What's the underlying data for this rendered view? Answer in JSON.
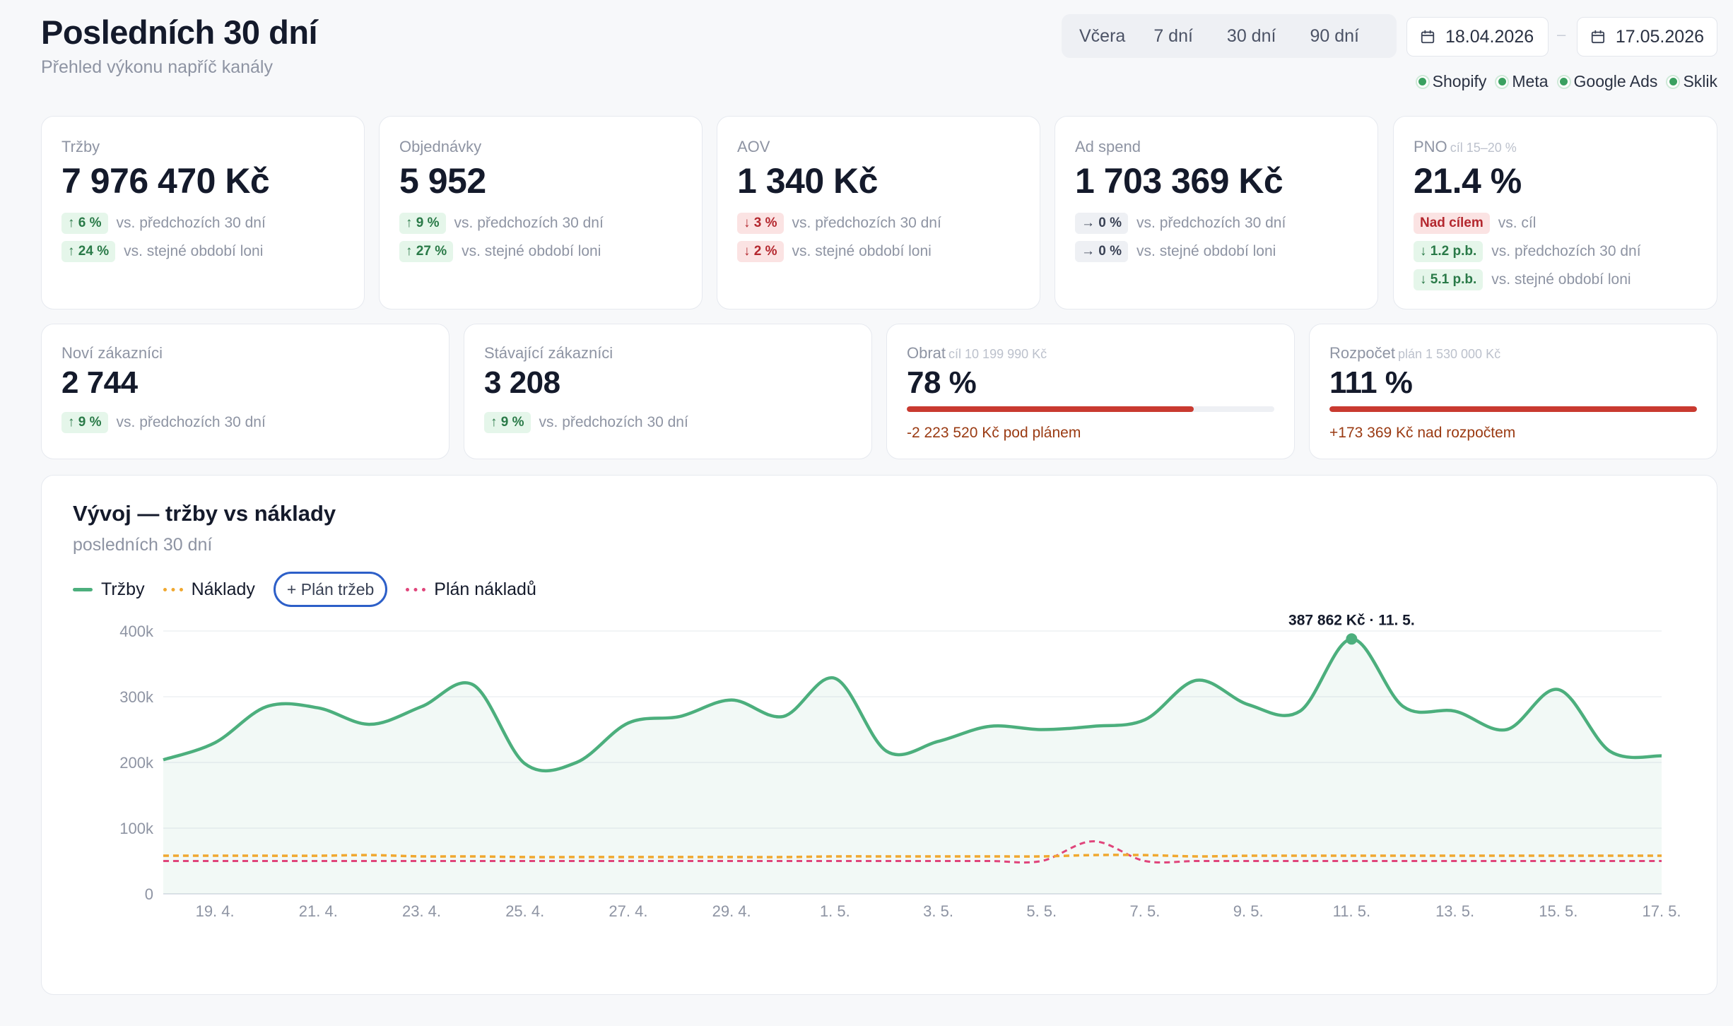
{
  "header": {
    "title": "Posledních 30 dní",
    "subtitle": "Přehled výkonu napříč kanály"
  },
  "range_buttons": [
    "Včera",
    "7 dní",
    "30 dní",
    "90 dní"
  ],
  "date_from": "18.04.2026",
  "date_sep": "–",
  "date_to": "17.05.2026",
  "channels": [
    "Shopify",
    "Meta",
    "Google Ads",
    "Sklik"
  ],
  "kpis_top": [
    {
      "label": "Tržby",
      "value": "7 976 470 Kč",
      "rows": [
        {
          "badge": "↑ 6 %",
          "kind": "up",
          "text": "vs. předchozích 30 dní"
        },
        {
          "badge": "↑ 24 %",
          "kind": "up",
          "text": "vs. stejné období loni"
        }
      ]
    },
    {
      "label": "Objednávky",
      "value": "5 952",
      "rows": [
        {
          "badge": "↑ 9 %",
          "kind": "up",
          "text": "vs. předchozích 30 dní"
        },
        {
          "badge": "↑ 27 %",
          "kind": "up",
          "text": "vs. stejné období loni"
        }
      ]
    },
    {
      "label": "AOV",
      "value": "1 340 Kč",
      "rows": [
        {
          "badge": "↓ 3 %",
          "kind": "down",
          "text": "vs. předchozích 30 dní"
        },
        {
          "badge": "↓ 2 %",
          "kind": "down",
          "text": "vs. stejné období loni"
        }
      ]
    },
    {
      "label": "Ad spend",
      "value": "1 703 369 Kč",
      "rows": [
        {
          "badge": "→ 0 %",
          "kind": "flat",
          "text": "vs. předchozích 30 dní"
        },
        {
          "badge": "→ 0 %",
          "kind": "flat",
          "text": "vs. stejné období loni"
        }
      ]
    },
    {
      "label": "PNO",
      "label_sub": "cíl 15–20 %",
      "value": "21.4 %",
      "rows": [
        {
          "badge": "Nad cílem",
          "kind": "warn",
          "text": "vs. cíl"
        },
        {
          "badge": "↓ 1.2 p.b.",
          "kind": "up",
          "text": "vs. předchozích 30 dní"
        },
        {
          "badge": "↓ 5.1 p.b.",
          "kind": "up",
          "text": "vs. stejné období loni"
        }
      ]
    }
  ],
  "kpis_bottom": [
    {
      "label": "Noví zákazníci",
      "value": "2 744",
      "rows": [
        {
          "badge": "↑ 9 %",
          "kind": "up",
          "text": "vs. předchozích 30 dní"
        }
      ]
    },
    {
      "label": "Stávající zákazníci",
      "value": "3 208",
      "rows": [
        {
          "badge": "↑ 9 %",
          "kind": "up",
          "text": "vs. předchozích 30 dní"
        }
      ]
    }
  ],
  "progress_cards": [
    {
      "label": "Obrat",
      "label_sub": "cíl 10 199 990 Kč",
      "value": "78 %",
      "progress": 0.78,
      "note": "-2 223 520 Kč pod plánem"
    },
    {
      "label": "Rozpočet",
      "label_sub": "plán 1 530 000 Kč",
      "value": "111 %",
      "progress": 1.0,
      "note": "+173 369 Kč nad rozpočtem"
    }
  ],
  "chart_section": {
    "title": "Vývoj — tržby vs náklady",
    "subtitle": "posledních 30 dní",
    "legend": {
      "trzby": "Tržby",
      "naklady": "Náklady",
      "plan_trzeb": "+ Plán tržeb",
      "plan_nakladu": "Plán nákladů"
    }
  },
  "colors": {
    "revenue": "#4caf7d",
    "costs": "#f0a830",
    "cost_plan": "#e0457b",
    "plan_button": "#2d5fc8",
    "progress": "#c93a30"
  },
  "chart_data": {
    "type": "line",
    "x": [
      "18. 4.",
      "19. 4.",
      "20. 4.",
      "21. 4.",
      "22. 4.",
      "23. 4.",
      "24. 4.",
      "25. 4.",
      "26. 4.",
      "27. 4.",
      "28. 4.",
      "29. 4.",
      "30. 4.",
      "1. 5.",
      "2. 5.",
      "3. 5.",
      "4. 5.",
      "5. 5.",
      "6. 5.",
      "7. 5.",
      "8. 5.",
      "9. 5.",
      "10. 5.",
      "11. 5.",
      "12. 5.",
      "13. 5.",
      "14. 5.",
      "15. 5.",
      "16. 5.",
      "17. 5."
    ],
    "xticks": [
      "19. 4.",
      "21. 4.",
      "23. 4.",
      "25. 4.",
      "27. 4.",
      "29. 4.",
      "1. 5.",
      "3. 5.",
      "5. 5.",
      "7. 5.",
      "9. 5.",
      "11. 5.",
      "13. 5.",
      "15. 5.",
      "17. 5."
    ],
    "yticks": [
      "0",
      "100k",
      "200k",
      "300k",
      "400k"
    ],
    "ylim": [
      0,
      400000
    ],
    "series": [
      {
        "name": "Tržby",
        "values": [
          204000,
          230000,
          285000,
          283000,
          258000,
          285000,
          318000,
          198000,
          200000,
          260000,
          270000,
          295000,
          270000,
          328000,
          217000,
          232000,
          255000,
          250000,
          255000,
          265000,
          325000,
          288000,
          278000,
          387862,
          285000,
          278000,
          250000,
          311000,
          217000,
          210000
        ]
      },
      {
        "name": "Náklady",
        "values": [
          58000,
          58000,
          58000,
          58000,
          59000,
          57000,
          57000,
          56000,
          56000,
          56000,
          56000,
          56000,
          56000,
          57000,
          57000,
          57000,
          57000,
          57000,
          59000,
          59000,
          57000,
          58000,
          58000,
          58000,
          58000,
          58000,
          58000,
          58000,
          58000,
          58000
        ]
      },
      {
        "name": "Plán nákladů",
        "values": [
          50000,
          50000,
          50000,
          50000,
          50000,
          50000,
          50000,
          50000,
          50000,
          50000,
          50000,
          50000,
          50000,
          50000,
          50000,
          50000,
          50000,
          50000,
          80000,
          50000,
          50000,
          50000,
          50000,
          50000,
          50000,
          50000,
          50000,
          50000,
          50000,
          50000
        ]
      }
    ],
    "annotation": {
      "text": "387 862 Kč · 11. 5.",
      "x": "11. 5.",
      "y": 387862
    }
  }
}
